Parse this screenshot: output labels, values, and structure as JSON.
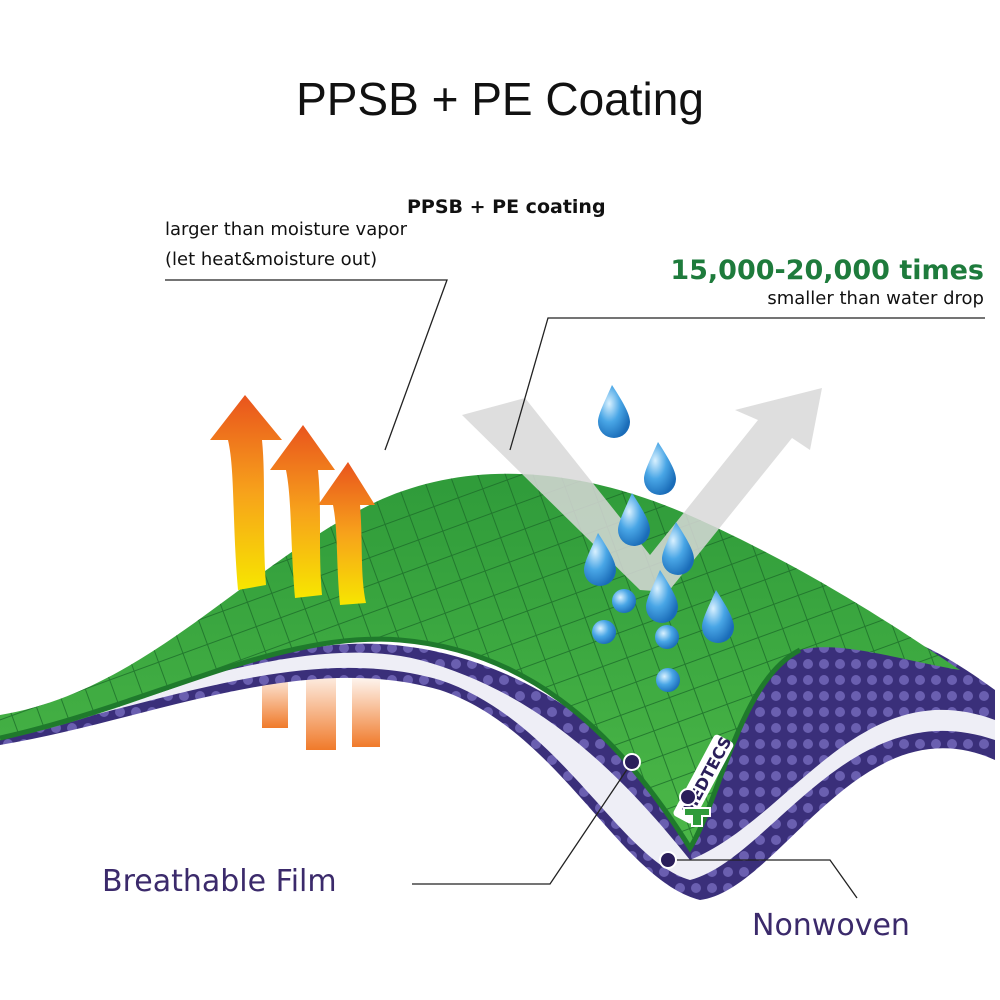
{
  "title": "PPSB + PE Coating",
  "labels": {
    "coating": "PPSB + PE coating",
    "vapor_line1": "larger than moisture vapor",
    "vapor_line2": "(let heat&moisture out)",
    "times": "15,000-20,000 times",
    "smaller": "smaller than water drop",
    "breathable_film": "Breathable Film",
    "nonwoven": "Nonwoven"
  },
  "logo": "MEDTECS",
  "colors": {
    "film_green": "#3fa535",
    "nonwoven_purple": "#3a2f7a",
    "accent_green": "#1e7b3c",
    "label_purple": "#3b2a6b",
    "water_blue": "#2e8fd6"
  }
}
